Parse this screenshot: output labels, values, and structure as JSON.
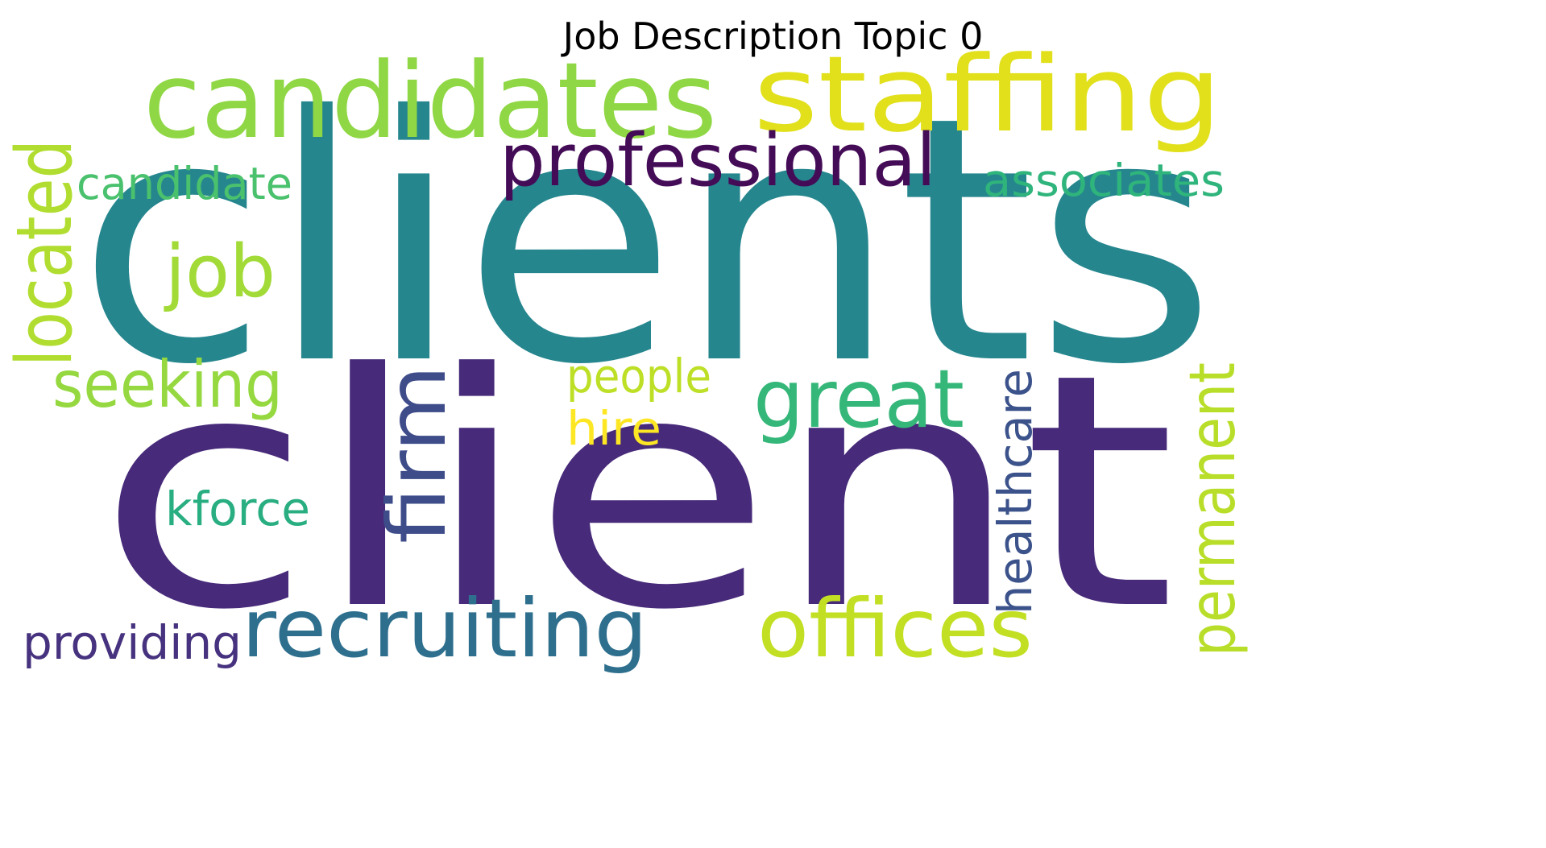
{
  "title": "Job Description Topic 0",
  "words": [
    {
      "text": "clients",
      "color": "#26868e",
      "rotation": "horizontal"
    },
    {
      "text": "client",
      "color": "#472a7a",
      "rotation": "horizontal"
    },
    {
      "text": "candidates",
      "color": "#8fd744",
      "rotation": "horizontal"
    },
    {
      "text": "staffing",
      "color": "#e1e01b",
      "rotation": "horizontal"
    },
    {
      "text": "professional",
      "color": "#440b57",
      "rotation": "horizontal"
    },
    {
      "text": "candidate",
      "color": "#4ac16d",
      "rotation": "horizontal"
    },
    {
      "text": "associates",
      "color": "#2fb47c",
      "rotation": "horizontal"
    },
    {
      "text": "located",
      "color": "#b0dd2f",
      "rotation": "vertical"
    },
    {
      "text": "job",
      "color": "#a2da37",
      "rotation": "horizontal"
    },
    {
      "text": "seeking",
      "color": "#95d840",
      "rotation": "horizontal"
    },
    {
      "text": "firm",
      "color": "#3e4c8a",
      "rotation": "vertical"
    },
    {
      "text": "great",
      "color": "#35b779",
      "rotation": "horizontal"
    },
    {
      "text": "people",
      "color": "#bddf26",
      "rotation": "horizontal"
    },
    {
      "text": "hire",
      "color": "#fde725",
      "rotation": "horizontal"
    },
    {
      "text": "kforce",
      "color": "#28ae80",
      "rotation": "horizontal"
    },
    {
      "text": "healthcare",
      "color": "#3b528b",
      "rotation": "vertical"
    },
    {
      "text": "permanent",
      "color": "#b8de29",
      "rotation": "vertical"
    },
    {
      "text": "recruiting",
      "color": "#2e6f8e",
      "rotation": "horizontal"
    },
    {
      "text": "offices",
      "color": "#c2df23",
      "rotation": "horizontal"
    },
    {
      "text": "providing",
      "color": "#46327e",
      "rotation": "horizontal"
    }
  ]
}
